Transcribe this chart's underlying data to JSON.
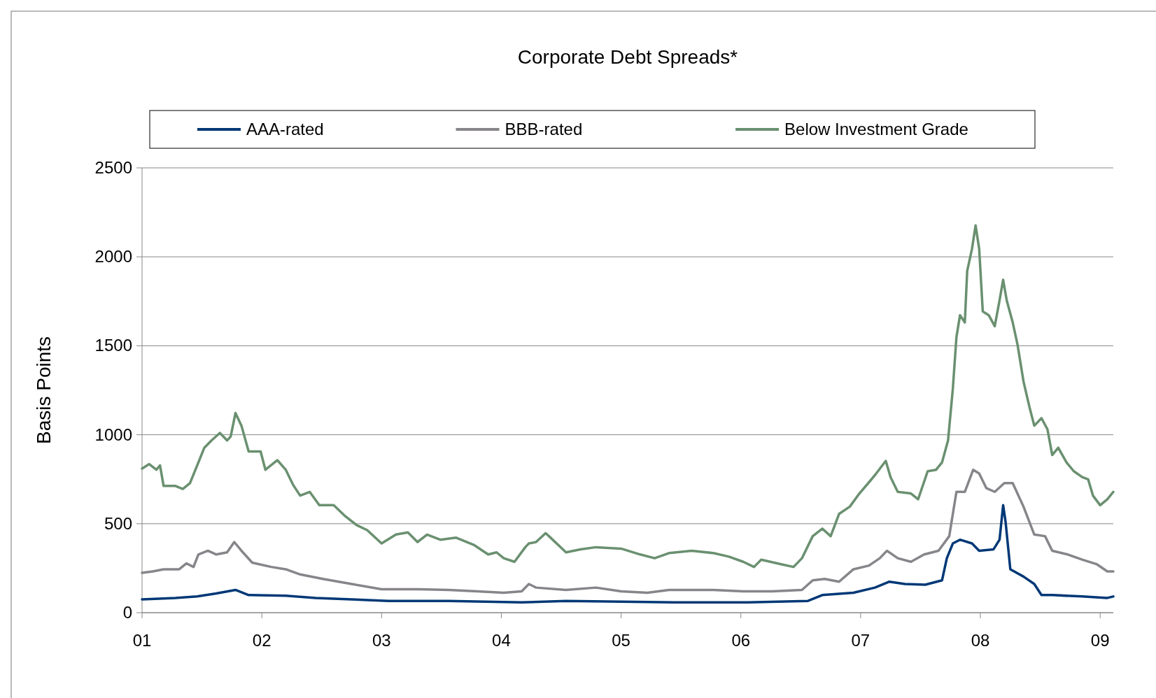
{
  "chart_data": {
    "type": "line",
    "title": "Corporate Debt Spreads*",
    "ylabel": "Basis Points",
    "xlim": [
      2001,
      2009.11
    ],
    "xticks": [
      {
        "value": 2001,
        "label": "01"
      },
      {
        "value": 2002,
        "label": "02"
      },
      {
        "value": 2003,
        "label": "03"
      },
      {
        "value": 2004,
        "label": "04"
      },
      {
        "value": 2005,
        "label": "05"
      },
      {
        "value": 2006,
        "label": "06"
      },
      {
        "value": 2007,
        "label": "07"
      },
      {
        "value": 2008,
        "label": "08"
      },
      {
        "value": 2009,
        "label": "09"
      }
    ],
    "ylim": [
      0,
      2500
    ],
    "yticks": [
      0,
      500,
      1000,
      1500,
      2000,
      2500
    ],
    "grid": "y",
    "legend": "top",
    "line_style": "solid",
    "marker": "none",
    "series": [
      {
        "name": "AAA-rated",
        "color": "#003876",
        "x": [
          2001,
          2001.28,
          2001.46,
          2001.62,
          2001.78,
          2001.89,
          2002.2,
          2002.45,
          2002.75,
          2003.06,
          2003.56,
          2004.17,
          2004.54,
          2005,
          2005.44,
          2006.06,
          2006.56,
          2006.68,
          2006.94,
          2007.12,
          2007.24,
          2007.37,
          2007.54,
          2007.68,
          2007.72,
          2007.77,
          2007.83,
          2007.93,
          2007.99,
          2008.11,
          2008.16,
          2008.19,
          2008.21,
          2008.25,
          2008.36,
          2008.45,
          2008.51,
          2008.6,
          2008.85,
          2009.06,
          2009.11
        ],
        "values": [
          75,
          83,
          91,
          108,
          128,
          99,
          95,
          83,
          75,
          66,
          66,
          58,
          66,
          62,
          58,
          58,
          66,
          99,
          112,
          141,
          174,
          161,
          157,
          182,
          306,
          389,
          410,
          389,
          348,
          356,
          410,
          604,
          513,
          244,
          203,
          161,
          99,
          99,
          91,
          83,
          91
        ]
      },
      {
        "name": "BBB-rated",
        "color": "#87858a",
        "x": [
          2001,
          2001.09,
          2001.18,
          2001.31,
          2001.37,
          2001.43,
          2001.47,
          2001.55,
          2001.62,
          2001.71,
          2001.77,
          2001.83,
          2001.92,
          2002.08,
          2002.2,
          2002.32,
          2002.51,
          2002.75,
          2003,
          2003.31,
          2003.56,
          2003.8,
          2004.02,
          2004.17,
          2004.23,
          2004.29,
          2004.54,
          2004.79,
          2005,
          2005.22,
          2005.4,
          2005.77,
          2006.02,
          2006.26,
          2006.51,
          2006.6,
          2006.7,
          2006.82,
          2006.94,
          2007.07,
          2007.16,
          2007.22,
          2007.31,
          2007.42,
          2007.53,
          2007.65,
          2007.74,
          2007.8,
          2007.87,
          2007.94,
          2007.99,
          2008.05,
          2008.12,
          2008.2,
          2008.27,
          2008.36,
          2008.45,
          2008.54,
          2008.6,
          2008.73,
          2008.85,
          2008.97,
          2009.06,
          2009.11
        ],
        "values": [
          224,
          232,
          244,
          244,
          277,
          257,
          327,
          348,
          327,
          339,
          397,
          348,
          281,
          257,
          244,
          215,
          190,
          161,
          132,
          132,
          128,
          120,
          112,
          120,
          161,
          141,
          128,
          141,
          120,
          112,
          128,
          128,
          120,
          120,
          128,
          182,
          190,
          174,
          244,
          265,
          306,
          348,
          306,
          286,
          327,
          348,
          430,
          679,
          679,
          803,
          782,
          700,
          679,
          728,
          728,
          596,
          439,
          430,
          348,
          327,
          298,
          273,
          232,
          232
        ]
      },
      {
        "name": "Below Investment Grade",
        "color": "#6a9070",
        "x": [
          2001,
          2001.06,
          2001.12,
          2001.15,
          2001.18,
          2001.28,
          2001.34,
          2001.4,
          2001.47,
          2001.52,
          2001.58,
          2001.65,
          2001.71,
          2001.74,
          2001.78,
          2001.83,
          2001.89,
          2001.99,
          2002.03,
          2002.13,
          2002.2,
          2002.26,
          2002.32,
          2002.4,
          2002.48,
          2002.6,
          2002.69,
          2002.79,
          2002.88,
          2003,
          2003.12,
          2003.22,
          2003.3,
          2003.38,
          2003.49,
          2003.62,
          2003.77,
          2003.89,
          2003.96,
          2004.02,
          2004.11,
          2004.2,
          2004.23,
          2004.29,
          2004.37,
          2004.41,
          2004.54,
          2004.66,
          2004.79,
          2005,
          2005.16,
          2005.28,
          2005.4,
          2005.59,
          2005.77,
          2005.9,
          2006.02,
          2006.11,
          2006.17,
          2006.33,
          2006.44,
          2006.51,
          2006.6,
          2006.68,
          2006.75,
          2006.82,
          2006.91,
          2006.99,
          2007.08,
          2007.13,
          2007.21,
          2007.25,
          2007.31,
          2007.42,
          2007.48,
          2007.56,
          2007.63,
          2007.68,
          2007.73,
          2007.77,
          2007.8,
          2007.83,
          2007.87,
          2007.89,
          2007.93,
          2007.96,
          2007.99,
          2008.02,
          2008.07,
          2008.12,
          2008.16,
          2008.19,
          2008.22,
          2008.27,
          2008.31,
          2008.36,
          2008.41,
          2008.45,
          2008.51,
          2008.56,
          2008.6,
          2008.65,
          2008.72,
          2008.78,
          2008.85,
          2008.9,
          2008.94,
          2009,
          2009.06,
          2009.11
        ],
        "values": [
          810,
          835,
          803,
          828,
          712,
          712,
          695,
          728,
          844,
          927,
          968,
          1010,
          968,
          990,
          1122,
          1051,
          906,
          906,
          803,
          857,
          803,
          720,
          658,
          679,
          604,
          604,
          546,
          493,
          464,
          389,
          439,
          451,
          397,
          439,
          410,
          422,
          381,
          327,
          339,
          306,
          286,
          368,
          389,
          397,
          447,
          422,
          339,
          356,
          368,
          360,
          327,
          306,
          335,
          348,
          335,
          315,
          286,
          257,
          298,
          273,
          257,
          306,
          430,
          472,
          430,
          555,
          596,
          670,
          741,
          782,
          853,
          762,
          679,
          670,
          637,
          795,
          803,
          845,
          968,
          1258,
          1548,
          1672,
          1631,
          1921,
          2045,
          2177,
          2045,
          1693,
          1672,
          1610,
          1755,
          1871,
          1755,
          1631,
          1507,
          1300,
          1155,
          1051,
          1093,
          1031,
          886,
          927,
          844,
          795,
          762,
          749,
          658,
          604,
          637,
          679
        ]
      }
    ]
  }
}
